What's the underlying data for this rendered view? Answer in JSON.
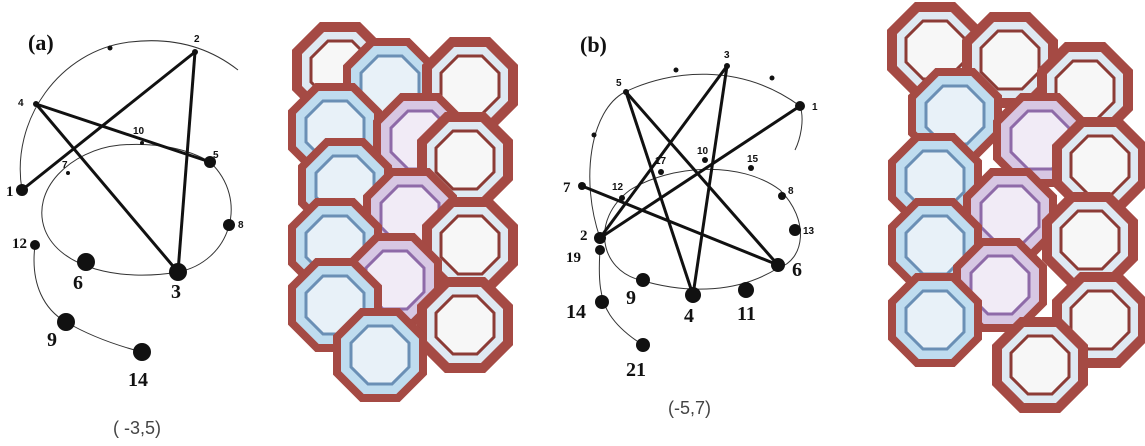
{
  "panel_a": {
    "label": "(a)",
    "caption": "( -3,5)",
    "node_labels": [
      "1",
      "2",
      "3",
      "4",
      "5",
      "6",
      "7",
      "8",
      "9",
      "10",
      "12",
      "14"
    ]
  },
  "panel_b": {
    "label": "(b)",
    "caption": "(-5,7)",
    "node_labels": [
      "1",
      "2",
      "3",
      "4",
      "5",
      "6",
      "7",
      "8",
      "9",
      "10",
      "11",
      "12",
      "13",
      "14",
      "15",
      "17",
      "19",
      "21"
    ]
  },
  "colors": {
    "ring_red": "#a54a44",
    "ring_blue": "#a9cde6",
    "ring_lavender": "#cdb8dc",
    "line": "#111111"
  }
}
